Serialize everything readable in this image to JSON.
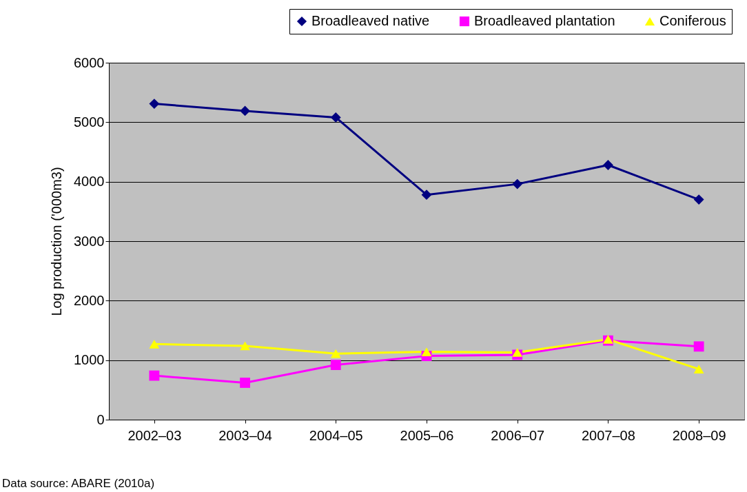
{
  "chart_data": {
    "type": "line",
    "ylabel": "Log production ('000m3)",
    "categories": [
      "2002–03",
      "2003–04",
      "2004–05",
      "2005–06",
      "2006–07",
      "2007–08",
      "2008–09"
    ],
    "series": [
      {
        "name": "Broadleaved native",
        "color": "#000080",
        "marker": "diamond",
        "values": [
          5310,
          5190,
          5080,
          3780,
          3960,
          4280,
          3700
        ]
      },
      {
        "name": "Broadleaved plantation",
        "color": "#ff00ff",
        "marker": "square",
        "values": [
          740,
          620,
          920,
          1070,
          1090,
          1330,
          1230
        ]
      },
      {
        "name": "Coniferous",
        "color": "#ffff00",
        "marker": "triangle",
        "values": [
          1270,
          1240,
          1110,
          1140,
          1130,
          1350,
          850
        ]
      }
    ],
    "ylim": [
      0,
      6000
    ],
    "yticks": [
      0,
      1000,
      2000,
      3000,
      4000,
      5000,
      6000
    ],
    "grid": "y",
    "legend": "top right",
    "line_style": "solid",
    "annotations": [
      "Data source: ABARE (2010a)"
    ]
  }
}
